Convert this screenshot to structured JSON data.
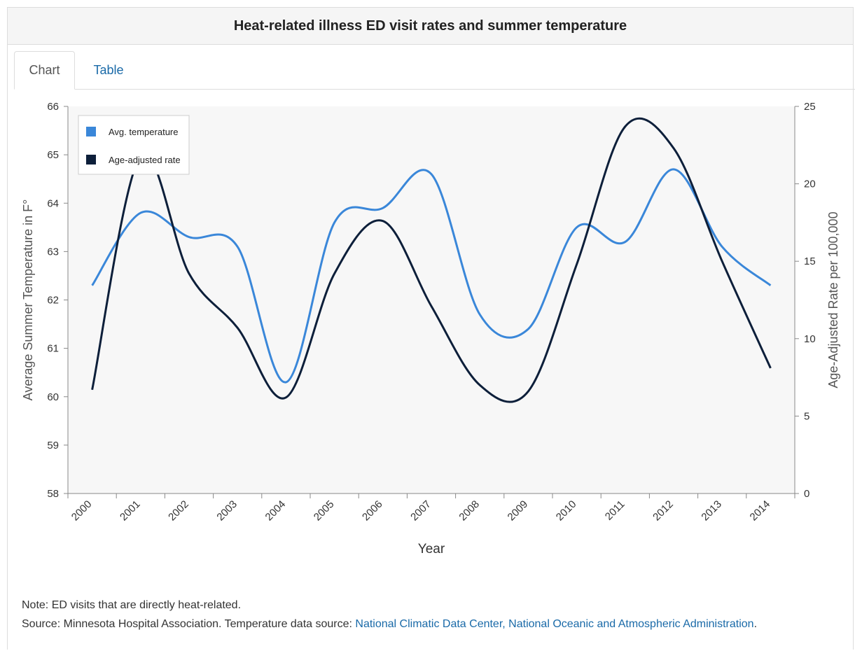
{
  "panel": {
    "title": "Heat-related illness ED visit rates and summer temperature"
  },
  "tabs": [
    {
      "label": "Chart"
    },
    {
      "label": "Table"
    }
  ],
  "notes": {
    "note": "Note: ED visits that are directly heat-related.",
    "source_prefix": "Source: Minnesota Hospital Association. Temperature data source: ",
    "source_link": "National Climatic Data Center, National Oceanic and Atmospheric Administration",
    "source_suffix": "."
  },
  "colors": {
    "temperature": "#3a87d9",
    "rate": "#0d1f3a",
    "plot_bg": "#f7f7f7"
  },
  "chart_data": {
    "type": "line",
    "x": [
      "2000",
      "2001",
      "2002",
      "2003",
      "2004",
      "2005",
      "2006",
      "2007",
      "2008",
      "2009",
      "2010",
      "2011",
      "2012",
      "2013",
      "2014"
    ],
    "xlabel": "Year",
    "ylabel_left": "Average Summer Temperature in F°",
    "ylabel_right": "Age-Adjusted Rate per 100,000",
    "ylim_left": [
      58,
      66
    ],
    "ylim_right": [
      0,
      25
    ],
    "yticks_left": [
      58,
      59,
      60,
      61,
      62,
      63,
      64,
      65,
      66
    ],
    "yticks_right": [
      0,
      5,
      10,
      15,
      20,
      25
    ],
    "legend_position": "top-left",
    "series": [
      {
        "name": "Avg. temperature",
        "axis": "left",
        "values": [
          62.3,
          63.8,
          63.3,
          63.1,
          60.3,
          63.6,
          63.9,
          64.6,
          61.7,
          61.4,
          63.5,
          63.2,
          64.7,
          63.1,
          62.3
        ]
      },
      {
        "name": "Age-adjusted rate",
        "axis": "right",
        "values": [
          6.7,
          21.8,
          14.2,
          10.7,
          6.2,
          14.2,
          17.6,
          12.1,
          7.0,
          6.6,
          14.8,
          23.7,
          22.3,
          15.0,
          8.1
        ]
      }
    ]
  }
}
